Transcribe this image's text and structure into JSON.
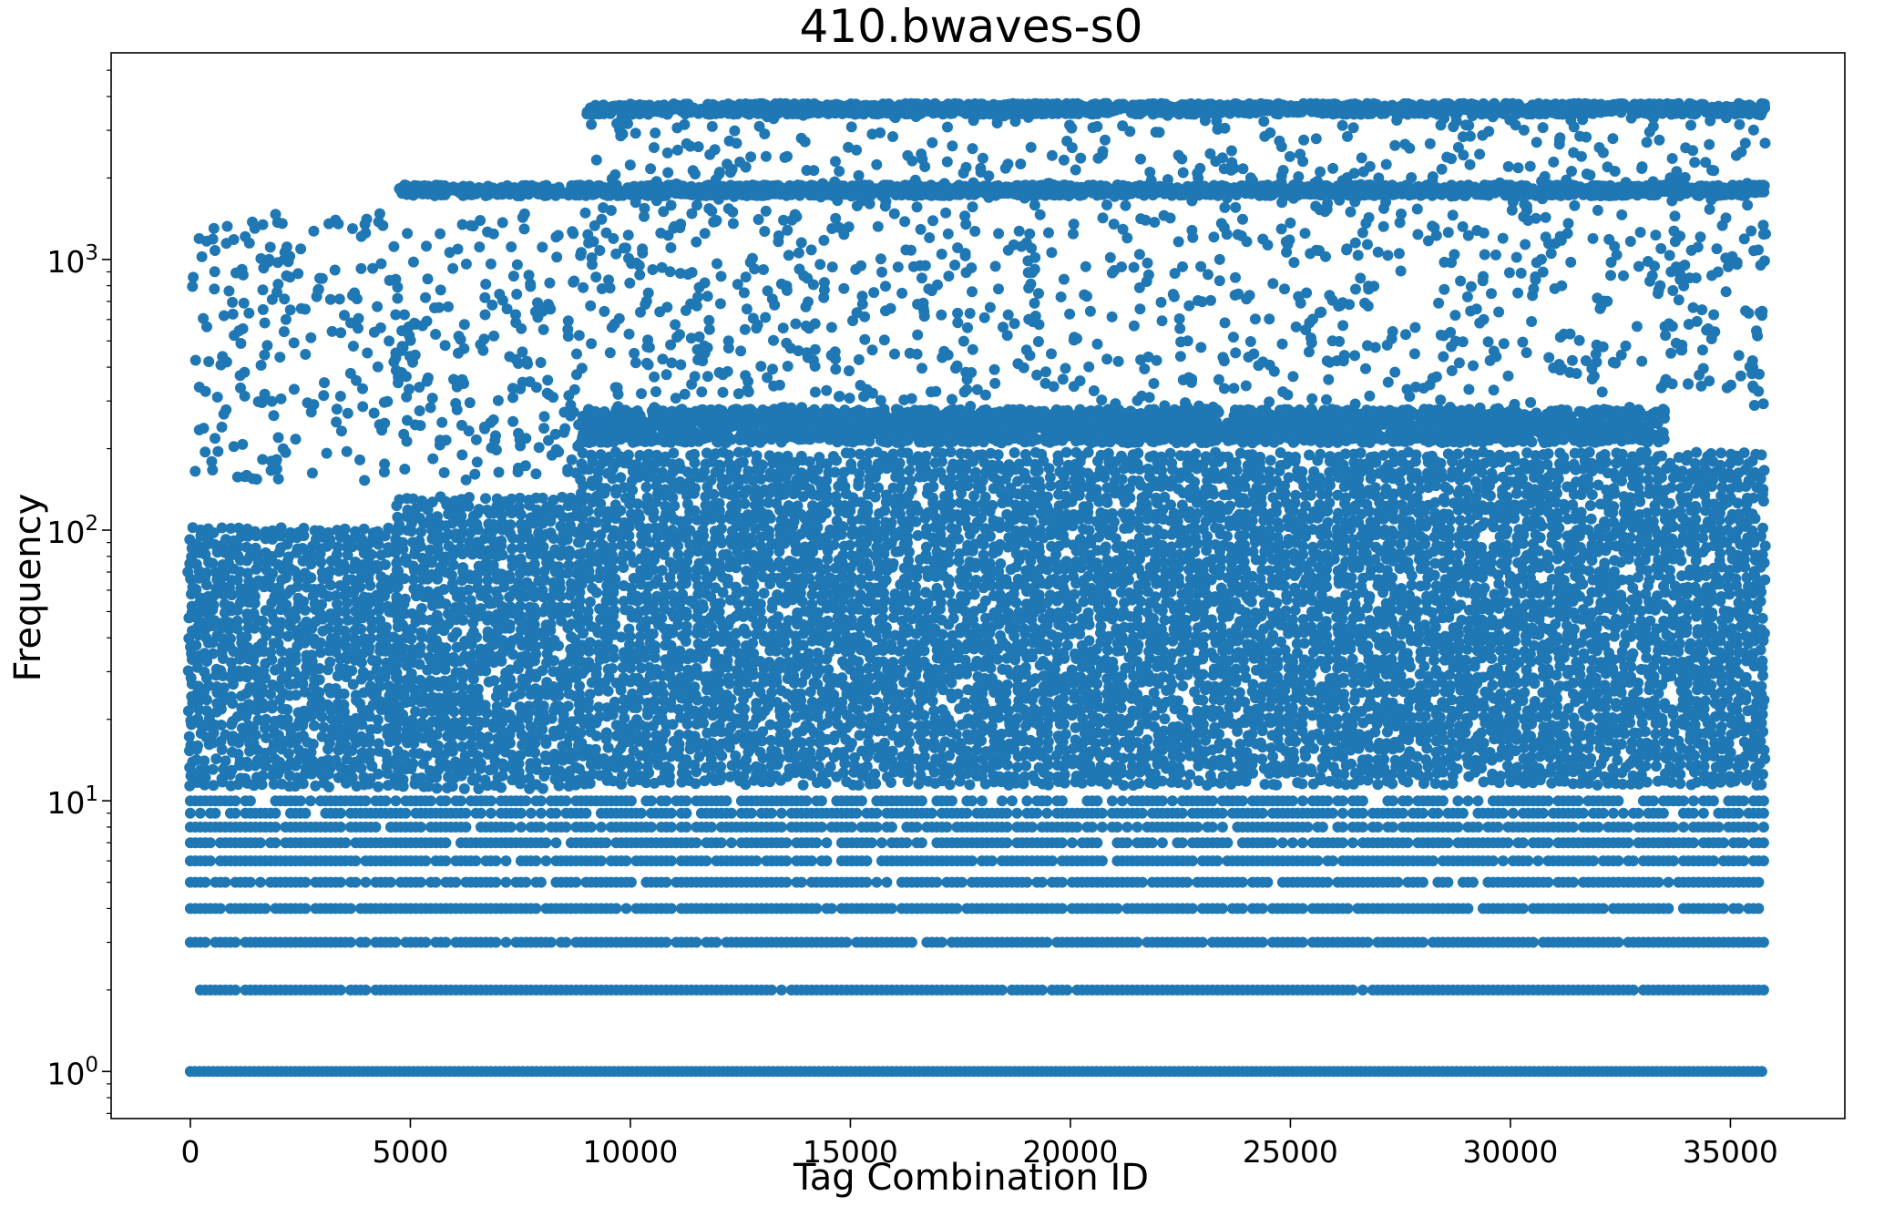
{
  "chart_data": {
    "type": "scatter",
    "title": "410.bwaves-s0",
    "xlabel": "Tag Combination ID",
    "ylabel": "Frequency",
    "x_scale": "linear",
    "y_scale": "log",
    "xlim": [
      -1800,
      37600
    ],
    "ylim": [
      0.67,
      5800
    ],
    "x_ticks": [
      0,
      5000,
      10000,
      15000,
      20000,
      25000,
      30000,
      35000
    ],
    "x_tick_labels": [
      "0",
      "5000",
      "10000",
      "15000",
      "20000",
      "25000",
      "30000",
      "35000"
    ],
    "y_ticks": [
      1,
      10,
      100,
      1000
    ],
    "y_tick_labels": [
      {
        "base": "10",
        "exp": "0"
      },
      {
        "base": "10",
        "exp": "1"
      },
      {
        "base": "10",
        "exp": "2"
      },
      {
        "base": "10",
        "exp": "3"
      }
    ],
    "grid": false,
    "marker_color": "#1f77b4",
    "x_max_id": 35800,
    "series": [
      {
        "description_bands": [
          {
            "x": [
              0,
              35800
            ],
            "y": 1,
            "pattern": "continuous"
          },
          {
            "x": [
              0,
              35800
            ],
            "y": 2,
            "pattern": "dense"
          },
          {
            "x": [
              0,
              35800
            ],
            "y": 3,
            "pattern": "dense"
          },
          {
            "x": [
              0,
              35800
            ],
            "y": 4,
            "pattern": "dense"
          },
          {
            "x": [
              0,
              35800
            ],
            "y": 5,
            "pattern": "dense"
          },
          {
            "x": [
              0,
              35800
            ],
            "y": 6,
            "pattern": "dense"
          },
          {
            "x": [
              0,
              35800
            ],
            "y": 7,
            "pattern": "dense"
          },
          {
            "x": [
              0,
              35800
            ],
            "y": 8,
            "pattern": "dense"
          },
          {
            "x": [
              0,
              35800
            ],
            "y": 9,
            "pattern": "dense"
          },
          {
            "x": [
              0,
              35800
            ],
            "y": 10,
            "pattern": "dense"
          },
          {
            "x": [
              0,
              4700
            ],
            "y": [
              11,
              100
            ],
            "pattern": "filled"
          },
          {
            "x": [
              4700,
              8900
            ],
            "y": [
              11,
              130
            ],
            "pattern": "filled"
          },
          {
            "x": [
              8900,
              35800
            ],
            "y": [
              11,
              190
            ],
            "pattern": "filled"
          },
          {
            "x": [
              8900,
              33500
            ],
            "y": [
              210,
              280
            ],
            "pattern": "band"
          },
          {
            "x": [
              4700,
              35800
            ],
            "y": 1800,
            "pattern": "band"
          },
          {
            "x": [
              9000,
              35800
            ],
            "y": 3600,
            "pattern": "band"
          },
          {
            "x": [
              0,
              8900
            ],
            "y": [
              150,
              1500
            ],
            "pattern": "sparse"
          },
          {
            "x": [
              8900,
              35800
            ],
            "y": [
              280,
              3500
            ],
            "pattern": "sparse"
          }
        ]
      }
    ]
  }
}
